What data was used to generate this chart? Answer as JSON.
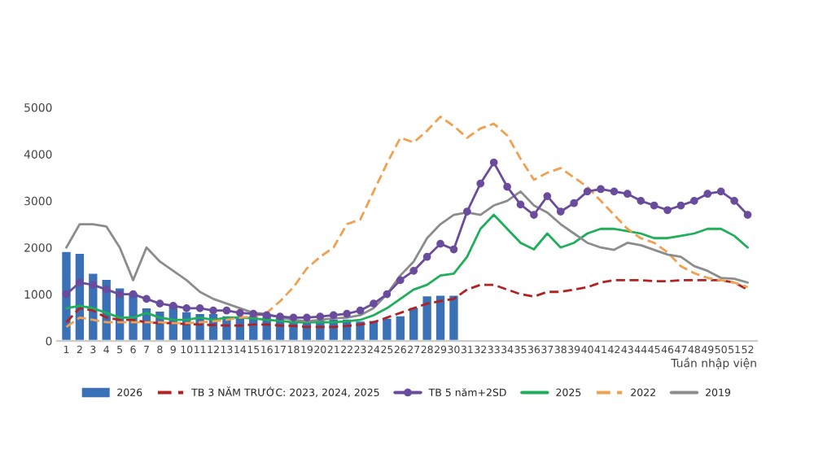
{
  "chart_data": {
    "type": "line",
    "xlabel": "Tuần nhập viện",
    "categories": [
      "1",
      "2",
      "3",
      "4",
      "5",
      "6",
      "7",
      "8",
      "9",
      "10",
      "11",
      "12",
      "13",
      "14",
      "15",
      "16",
      "17",
      "18",
      "19",
      "20",
      "21",
      "22",
      "23",
      "24",
      "25",
      "26",
      "27",
      "28",
      "29",
      "30",
      "31",
      "32",
      "33",
      "34",
      "35",
      "36",
      "37",
      "38",
      "39",
      "40",
      "41",
      "42",
      "43",
      "44",
      "45",
      "46",
      "47",
      "48",
      "49",
      "50",
      "51",
      "52"
    ],
    "series": [
      {
        "name": "2026",
        "type": "bar",
        "color": "#3a70b5",
        "values": [
          1930,
          1890,
          1460,
          1330,
          1150,
          1050,
          720,
          650,
          800,
          640,
          600,
          600,
          550,
          550,
          560,
          560,
          520,
          420,
          450,
          470,
          480,
          480,
          440,
          450,
          500,
          550,
          730,
          980,
          990,
          990,
          null,
          null,
          null,
          null,
          null,
          null,
          null,
          null,
          null,
          null,
          null,
          null,
          null,
          null,
          null,
          null,
          null,
          null,
          null,
          null,
          null,
          null
        ]
      },
      {
        "name": "TB 3 NĂM TRƯỚC: 2023, 2024, 2025",
        "color": "#b22222",
        "line_style": "dashed",
        "marker": "none",
        "values": [
          400,
          700,
          650,
          500,
          450,
          450,
          400,
          380,
          380,
          360,
          350,
          340,
          330,
          330,
          350,
          350,
          330,
          320,
          300,
          300,
          300,
          320,
          350,
          400,
          500,
          600,
          700,
          800,
          850,
          900,
          1100,
          1200,
          1200,
          1100,
          1000,
          950,
          1050,
          1050,
          1100,
          1150,
          1250,
          1300,
          1300,
          1300,
          1280,
          1280,
          1300,
          1300,
          1300,
          1300,
          1250,
          1100
        ]
      },
      {
        "name": "TB 5 năm+2SD",
        "color": "#6a4c9c",
        "line_style": "solid",
        "marker": "circle",
        "values": [
          1000,
          1250,
          1200,
          1100,
          1000,
          1000,
          900,
          800,
          750,
          700,
          700,
          650,
          650,
          600,
          580,
          550,
          520,
          500,
          500,
          520,
          550,
          580,
          650,
          800,
          1000,
          1300,
          1500,
          1800,
          2080,
          1960,
          2770,
          3370,
          3820,
          3300,
          2920,
          2700,
          3100,
          2770,
          2950,
          3200,
          3250,
          3200,
          3150,
          3000,
          2900,
          2800,
          2900,
          3000,
          3150,
          3200,
          3000,
          2700
        ]
      },
      {
        "name": "2025",
        "color": "#1fae5a",
        "line_style": "solid",
        "marker": "none",
        "values": [
          700,
          750,
          700,
          600,
          500,
          500,
          600,
          500,
          450,
          450,
          500,
          450,
          500,
          500,
          480,
          450,
          430,
          400,
          400,
          400,
          400,
          420,
          450,
          550,
          700,
          900,
          1100,
          1200,
          1400,
          1440,
          1800,
          2400,
          2700,
          2400,
          2100,
          1960,
          2300,
          2000,
          2100,
          2300,
          2400,
          2400,
          2350,
          2300,
          2200,
          2200,
          2250,
          2300,
          2400,
          2400,
          2250,
          2000
        ]
      },
      {
        "name": "2022",
        "color": "#f0a050",
        "line_style": "dashed",
        "marker": "none",
        "values": [
          300,
          500,
          450,
          400,
          400,
          400,
          400,
          400,
          380,
          380,
          400,
          420,
          450,
          500,
          520,
          600,
          850,
          1150,
          1550,
          1800,
          2000,
          2500,
          2600,
          3200,
          3800,
          4350,
          4250,
          4500,
          4800,
          4600,
          4350,
          4550,
          4650,
          4400,
          3900,
          3450,
          3600,
          3700,
          3500,
          3300,
          3000,
          2700,
          2400,
          2200,
          2100,
          1900,
          1600,
          1450,
          1350,
          1300,
          1250,
          1150
        ]
      },
      {
        "name": "2019",
        "color": "#8c8c8c",
        "line_style": "solid",
        "marker": "none",
        "values": [
          2000,
          2500,
          2500,
          2450,
          2000,
          1300,
          2000,
          1700,
          1500,
          1300,
          1050,
          900,
          800,
          700,
          600,
          580,
          500,
          450,
          420,
          450,
          480,
          500,
          550,
          700,
          1000,
          1400,
          1700,
          2200,
          2500,
          2700,
          2750,
          2700,
          2900,
          3000,
          3200,
          2900,
          2750,
          2500,
          2300,
          2100,
          2000,
          1950,
          2100,
          2050,
          1950,
          1850,
          1800,
          1600,
          1500,
          1350,
          1330,
          1250
        ]
      }
    ],
    "ylim": [
      0,
      5000
    ],
    "yticks": [
      0,
      1000,
      2000,
      3000,
      4000,
      5000
    ],
    "grid": false,
    "legend": "bottom"
  }
}
